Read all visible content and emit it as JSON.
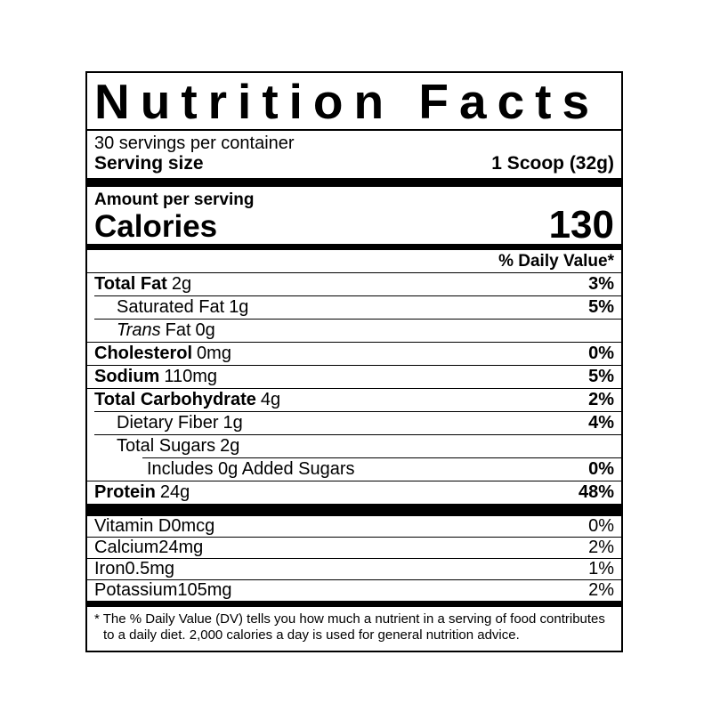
{
  "colors": {
    "text": "#000000",
    "background": "#ffffff"
  },
  "label": {
    "title": "Nutrition Facts",
    "servings_per_container": "30 servings per container",
    "serving_size_label": "Serving size",
    "serving_size_value": "1 Scoop (32g)",
    "amount_per_serving": "Amount per serving",
    "calories_label": "Calories",
    "calories_value": "130",
    "daily_value_header": "% Daily Value*",
    "nutrients": [
      {
        "name": "Total Fat",
        "amount": "2g",
        "dv": "3%"
      },
      {
        "name": "Saturated Fat",
        "amount": "1g",
        "dv": "5%"
      },
      {
        "name_italic": "Trans",
        "name": "Fat",
        "amount": "0g",
        "dv": ""
      },
      {
        "name": "Cholesterol",
        "amount": "0mg",
        "dv": "0%"
      },
      {
        "name": "Sodium",
        "amount": "110mg",
        "dv": "5%"
      },
      {
        "name": "Total Carbohydrate",
        "amount": "4g",
        "dv": "2%"
      },
      {
        "name": "Dietary Fiber",
        "amount": "1g",
        "dv": "4%"
      },
      {
        "name": "Total Sugars",
        "amount": "2g",
        "dv": ""
      },
      {
        "name": "Includes 0g Added Sugars",
        "amount": "",
        "dv": "0%"
      },
      {
        "name": "Protein",
        "amount": "24g",
        "dv": "48%"
      }
    ],
    "vitamins": [
      {
        "name": "Vitamin D",
        "amount": "0mcg",
        "dv": "0%"
      },
      {
        "name": "Calcium",
        "amount": "24mg",
        "dv": "2%"
      },
      {
        "name": "Iron",
        "amount": "0.5mg",
        "dv": "1%"
      },
      {
        "name": "Potassium",
        "amount": "105mg",
        "dv": "2%"
      }
    ],
    "footnote": "* The % Daily Value (DV) tells you how much a nutrient in a serving of food contributes to a daily diet. 2,000 calories a day is used for general nutrition advice."
  }
}
